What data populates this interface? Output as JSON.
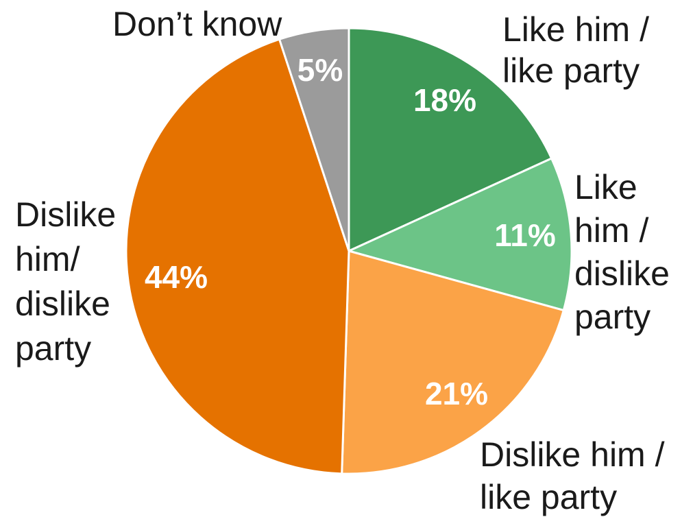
{
  "chart_data": {
    "type": "pie",
    "title": "",
    "start": "12 o'clock",
    "direction": "clockwise",
    "legend": "none (direct labels)",
    "slices": [
      {
        "name": "like-him-like-party",
        "label_lines": [
          "Like him /",
          "like party"
        ],
        "value": 18,
        "value_label": "18%",
        "color": "#3d9856"
      },
      {
        "name": "like-him-dislike-party",
        "label_lines": [
          "Like",
          "him /",
          "dislike",
          "party"
        ],
        "value": 11,
        "value_label": "11%",
        "color": "#6cc487"
      },
      {
        "name": "dislike-him-like-party",
        "label_lines": [
          "Dislike him /",
          "like party"
        ],
        "value": 21,
        "value_label": "21%",
        "color": "#fba347"
      },
      {
        "name": "dislike-him-dislike-party",
        "label_lines": [
          "Dislike",
          "him/",
          "dislike",
          "party"
        ],
        "value": 44,
        "value_label": "44%",
        "color": "#e57200"
      },
      {
        "name": "dont-know",
        "label_lines": [
          "Don’t know"
        ],
        "value": 5,
        "value_label": "5%",
        "color": "#9b9b9b"
      }
    ]
  }
}
